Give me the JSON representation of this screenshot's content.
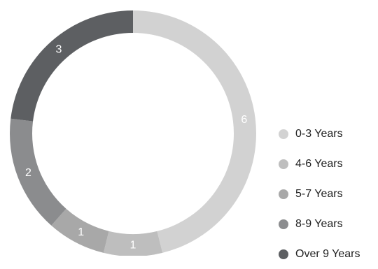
{
  "chart_data": {
    "type": "pie",
    "variant": "donut",
    "title": "",
    "categories": [
      "0-3 Years",
      "4-6 Years",
      "5-7 Years",
      "8-9 Years",
      "Over 9 Years"
    ],
    "values": [
      6,
      1,
      1,
      2,
      3
    ],
    "colors": [
      "#d2d2d2",
      "#bebebe",
      "#a8a8a8",
      "#8b8c8e",
      "#5d5f62"
    ],
    "data_labels": [
      "6",
      "1",
      "1",
      "2",
      "3"
    ],
    "legend_placement": "right",
    "start": "top",
    "direction": "clockwise"
  }
}
